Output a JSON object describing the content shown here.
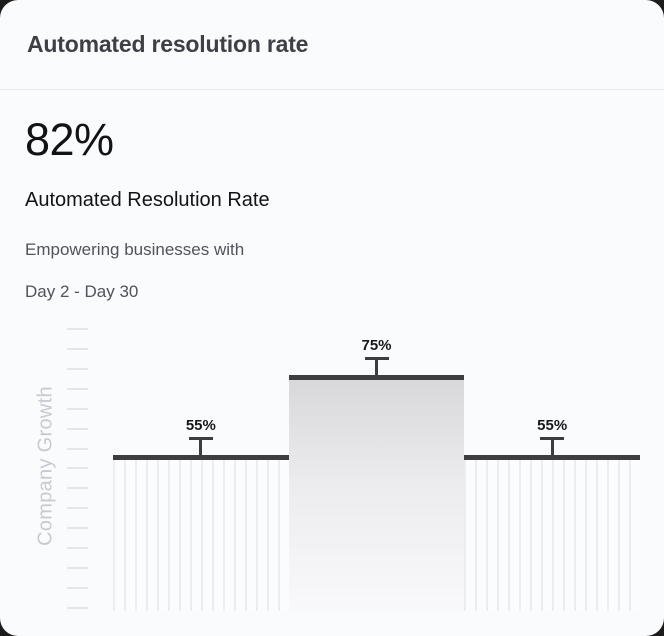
{
  "card": {
    "title": "Automated resolution rate",
    "stat_value": "82%",
    "stat_label": "Automated Resolution Rate",
    "description": "Empowering businesses with",
    "date_range": "Day 2 - Day 30"
  },
  "colors": {
    "page_bg": "#1c1c1c",
    "card_bg": "#fafbfd",
    "title_text": "#3f3f46",
    "dark_text": "#131316",
    "muted_text": "#52525b",
    "axis_label": "#c7cad0",
    "tick": "#e3e5e9",
    "bar_border": "#3d3d41",
    "stripe": "#ededf0",
    "gradient_top": "#d8d8da",
    "gradient_bottom": "#f9f9fb"
  },
  "chart_data": {
    "type": "bar",
    "title": "",
    "xlabel": "",
    "ylabel": "Company Growth",
    "categories": [
      "bar-1",
      "bar-2",
      "bar-3"
    ],
    "values": [
      55,
      75,
      55
    ],
    "labels": [
      "55%",
      "75%",
      "55%"
    ],
    "ylim": [
      0,
      100
    ],
    "grid": false,
    "legend": false,
    "tick_count": 15,
    "display_heights_pct": [
      53.5,
      81.2,
      53.5
    ],
    "bar_styles": [
      "striped",
      "gradient",
      "striped"
    ]
  }
}
